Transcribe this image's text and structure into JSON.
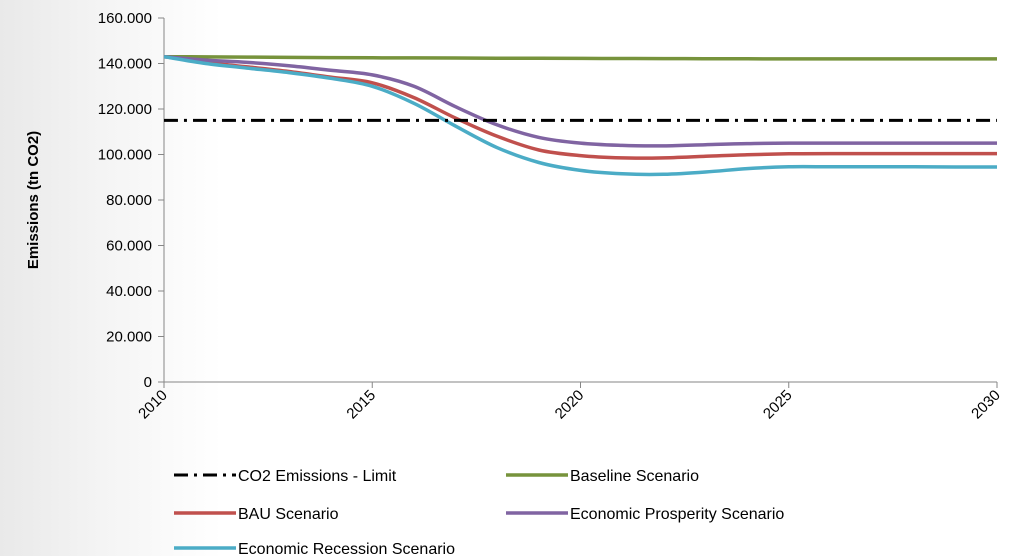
{
  "chart_data": {
    "type": "line",
    "title": "",
    "xlabel": "",
    "ylabel": "Emissions (tn CO2)",
    "xlim": [
      2010,
      2030
    ],
    "ylim": [
      0,
      160000
    ],
    "x_ticks": [
      "2010",
      "2015",
      "2020",
      "2025",
      "2030"
    ],
    "y_ticks": [
      "0",
      "20.000",
      "40.000",
      "60.000",
      "80.000",
      "100.000",
      "120.000",
      "140.000",
      "160.000"
    ],
    "y_tick_values": [
      0,
      20000,
      40000,
      60000,
      80000,
      100000,
      120000,
      140000,
      160000
    ],
    "grid": false,
    "legend_position": "bottom",
    "x": [
      2010,
      2011,
      2012,
      2013,
      2014,
      2015,
      2016,
      2017,
      2018,
      2019,
      2020,
      2021,
      2022,
      2023,
      2024,
      2025,
      2026,
      2027,
      2028,
      2029,
      2030
    ],
    "series": [
      {
        "name": "CO2 Emissions - Limit",
        "color": "#000000",
        "style": "dash-dot",
        "values": [
          115000,
          115000,
          115000,
          115000,
          115000,
          115000,
          115000,
          115000,
          115000,
          115000,
          115000,
          115000,
          115000,
          115000,
          115000,
          115000,
          115000,
          115000,
          115000,
          115000,
          115000
        ]
      },
      {
        "name": "Baseline Scenario",
        "color": "#77933c",
        "style": "solid",
        "values": [
          143000,
          142900,
          142800,
          142700,
          142600,
          142500,
          142450,
          142400,
          142350,
          142300,
          142250,
          142200,
          142150,
          142100,
          142050,
          142000,
          142000,
          142000,
          142000,
          142000,
          142000
        ]
      },
      {
        "name": "BAU Scenario",
        "color": "#c0504d",
        "style": "solid",
        "values": [
          143000,
          140500,
          138500,
          136500,
          134000,
          131500,
          125000,
          116000,
          108000,
          102000,
          99500,
          98500,
          98500,
          99200,
          99900,
          100300,
          100400,
          100400,
          100400,
          100400,
          100400
        ]
      },
      {
        "name": "Economic Prosperity Scenario",
        "color": "#8064a2",
        "style": "solid",
        "values": [
          143000,
          141500,
          140500,
          139000,
          137000,
          135000,
          130000,
          121000,
          113000,
          107500,
          105000,
          104000,
          103800,
          104300,
          104800,
          105000,
          105000,
          105000,
          105000,
          105000,
          105000
        ]
      },
      {
        "name": "Economic Recession Scenario",
        "color": "#4bacc6",
        "style": "solid",
        "values": [
          143000,
          140000,
          138000,
          136000,
          133500,
          130000,
          122500,
          112500,
          103000,
          96500,
          93000,
          91500,
          91300,
          92300,
          93800,
          94600,
          94600,
          94600,
          94600,
          94500,
          94500
        ]
      }
    ]
  }
}
